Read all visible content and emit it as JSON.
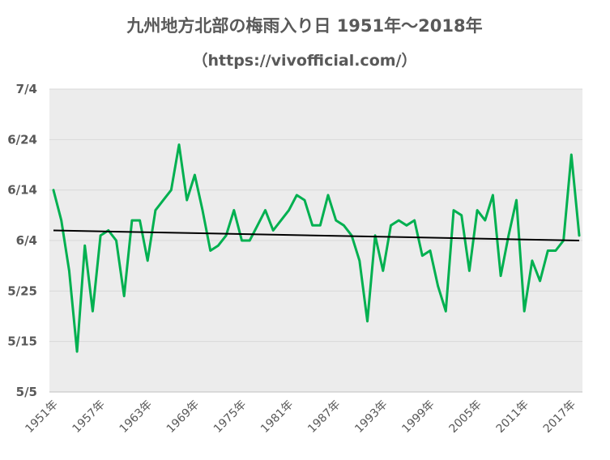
{
  "chart_data": {
    "type": "line",
    "title": "九州地方北部の梅雨入り日 1951年〜2018年",
    "subtitle": "（https://vivofficial.com/）",
    "x": [
      1951,
      1952,
      1953,
      1954,
      1955,
      1956,
      1957,
      1958,
      1959,
      1960,
      1961,
      1962,
      1963,
      1964,
      1965,
      1966,
      1967,
      1968,
      1969,
      1970,
      1971,
      1972,
      1973,
      1974,
      1975,
      1976,
      1977,
      1978,
      1979,
      1980,
      1981,
      1982,
      1983,
      1984,
      1985,
      1986,
      1987,
      1988,
      1989,
      1990,
      1991,
      1992,
      1993,
      1994,
      1995,
      1996,
      1997,
      1998,
      1999,
      2000,
      2001,
      2002,
      2003,
      2004,
      2005,
      2006,
      2007,
      2008,
      2009,
      2010,
      2011,
      2012,
      2013,
      2014,
      2015,
      2016,
      2017,
      2018
    ],
    "xtick_labels": [
      "1951年",
      "1957年",
      "1963年",
      "1969年",
      "1975年",
      "1981年",
      "1987年",
      "1993年",
      "1999年",
      "2005年",
      "2011年",
      "2017年"
    ],
    "xtick_years": [
      1951,
      1957,
      1963,
      1969,
      1975,
      1981,
      1987,
      1993,
      1999,
      2005,
      2011,
      2017
    ],
    "series": [
      {
        "color": "#00b050",
        "values": [
          "6/14",
          "6/8",
          "5/29",
          "5/13",
          "6/3",
          "5/21",
          "6/5",
          "6/6",
          "6/4",
          "5/24",
          "6/8",
          "6/8",
          "5/31",
          "6/10",
          "6/12",
          "6/14",
          "6/23",
          "6/12",
          "6/17",
          "6/10",
          "6/2",
          "6/3",
          "6/5",
          "6/10",
          "6/4",
          "6/4",
          "6/7",
          "6/10",
          "6/6",
          "6/8",
          "6/10",
          "6/13",
          "6/12",
          "6/7",
          "6/7",
          "6/13",
          "6/8",
          "6/7",
          "6/5",
          "5/31",
          "5/19",
          "6/5",
          "5/29",
          "6/7",
          "6/8",
          "6/7",
          "6/8",
          "6/1",
          "6/2",
          "5/26",
          "5/21",
          "6/10",
          "6/9",
          "5/29",
          "6/10",
          "6/8",
          "6/13",
          "5/28",
          "6/5",
          "6/12",
          "5/21",
          "5/31",
          "5/27",
          "6/2",
          "6/2",
          "6/4",
          "6/21",
          "6/5"
        ]
      },
      {
        "type": "trendline",
        "color": "#000000",
        "start": {
          "x": 1951,
          "y": "6/6"
        },
        "end": {
          "x": 2018,
          "y": "6/4"
        }
      }
    ],
    "yticks": [
      "7/4",
      "6/24",
      "6/14",
      "6/4",
      "5/25",
      "5/15",
      "5/5"
    ],
    "ylim": [
      "5/5",
      "7/4"
    ],
    "xlim": [
      1951,
      2018
    ],
    "grid": true,
    "legend": "none",
    "plot_background": "#ececec"
  }
}
